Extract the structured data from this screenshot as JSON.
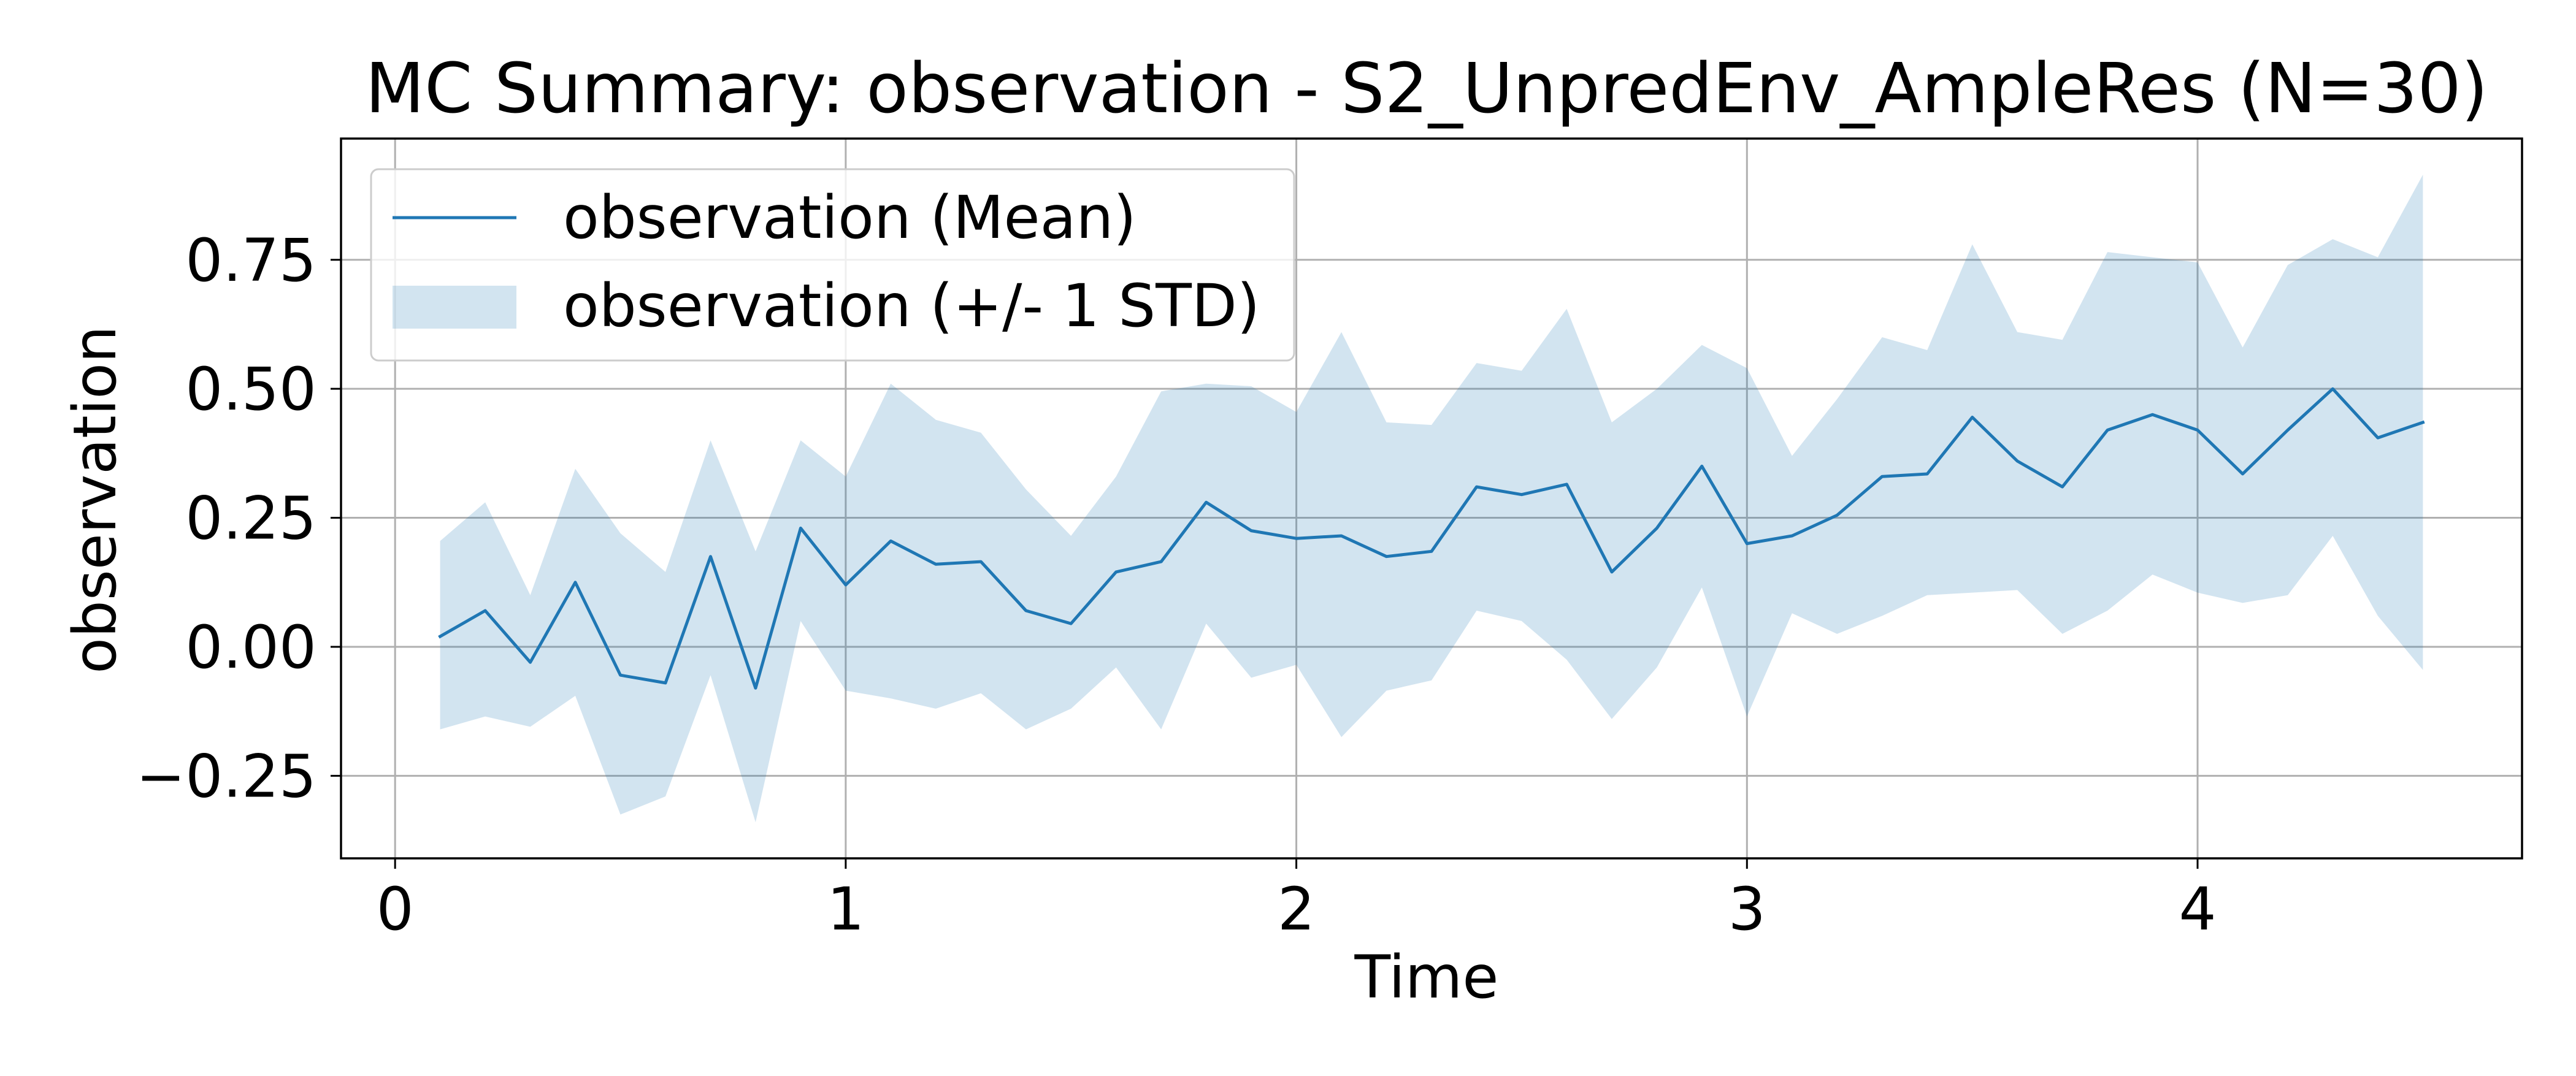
{
  "chart_data": {
    "type": "line",
    "title": "MC Summary: observation - S2_UnpredEnv_AmpleRes (N=30)",
    "xlabel": "Time",
    "ylabel": "observation",
    "xlim": [
      -0.12,
      4.72
    ],
    "ylim": [
      -0.41,
      0.985
    ],
    "x_ticks": [
      0,
      1,
      2,
      3,
      4
    ],
    "x_tick_labels": [
      "0",
      "1",
      "2",
      "3",
      "4"
    ],
    "y_ticks": [
      -0.25,
      0,
      0.25,
      0.5,
      0.75
    ],
    "y_tick_labels": [
      "−0.25",
      "0.00",
      "0.25",
      "0.50",
      "0.75"
    ],
    "grid": true,
    "legend_position": "top-left",
    "x": [
      0.1,
      0.2,
      0.3,
      0.4,
      0.5,
      0.6,
      0.7,
      0.8,
      0.9,
      1.0,
      1.1,
      1.2,
      1.3,
      1.4,
      1.5,
      1.6,
      1.7,
      1.8,
      1.9,
      2.0,
      2.1,
      2.2,
      2.3,
      2.4,
      2.5,
      2.6,
      2.7,
      2.8,
      2.9,
      3.0,
      3.1,
      3.2,
      3.3,
      3.4,
      3.5,
      3.6,
      3.7,
      3.8,
      3.9,
      4.0,
      4.1,
      4.2,
      4.3,
      4.4,
      4.5
    ],
    "series": [
      {
        "name": "observation (Mean)",
        "color": "#1f77b4",
        "values": [
          0.02,
          0.07,
          -0.03,
          0.125,
          -0.055,
          -0.07,
          0.175,
          -0.08,
          0.23,
          0.12,
          0.205,
          0.16,
          0.165,
          0.07,
          0.045,
          0.145,
          0.165,
          0.28,
          0.225,
          0.21,
          0.215,
          0.175,
          0.185,
          0.31,
          0.295,
          0.315,
          0.145,
          0.23,
          0.35,
          0.2,
          0.215,
          0.255,
          0.33,
          0.335,
          0.445,
          0.36,
          0.31,
          0.42,
          0.45,
          0.42,
          0.335,
          0.42,
          0.5,
          0.405,
          0.435
        ]
      },
      {
        "name": "observation (+/- 1 STD)",
        "color": "#1f77b4",
        "opacity": 0.2,
        "upper": [
          0.205,
          0.28,
          0.1,
          0.345,
          0.22,
          0.145,
          0.4,
          0.185,
          0.4,
          0.33,
          0.51,
          0.44,
          0.415,
          0.305,
          0.215,
          0.33,
          0.495,
          0.51,
          0.505,
          0.455,
          0.61,
          0.435,
          0.43,
          0.55,
          0.535,
          0.655,
          0.435,
          0.5,
          0.585,
          0.54,
          0.37,
          0.48,
          0.6,
          0.575,
          0.78,
          0.61,
          0.595,
          0.765,
          0.755,
          0.745,
          0.58,
          0.74,
          0.79,
          0.755,
          0.915
        ],
        "lower": [
          -0.16,
          -0.135,
          -0.155,
          -0.095,
          -0.325,
          -0.29,
          -0.055,
          -0.34,
          0.05,
          -0.085,
          -0.1,
          -0.12,
          -0.09,
          -0.16,
          -0.12,
          -0.04,
          -0.16,
          0.045,
          -0.06,
          -0.035,
          -0.175,
          -0.085,
          -0.065,
          0.07,
          0.05,
          -0.025,
          -0.14,
          -0.04,
          0.115,
          -0.135,
          0.065,
          0.025,
          0.06,
          0.1,
          0.105,
          0.11,
          0.025,
          0.07,
          0.14,
          0.105,
          0.085,
          0.1,
          0.215,
          0.06,
          -0.045
        ]
      }
    ]
  }
}
